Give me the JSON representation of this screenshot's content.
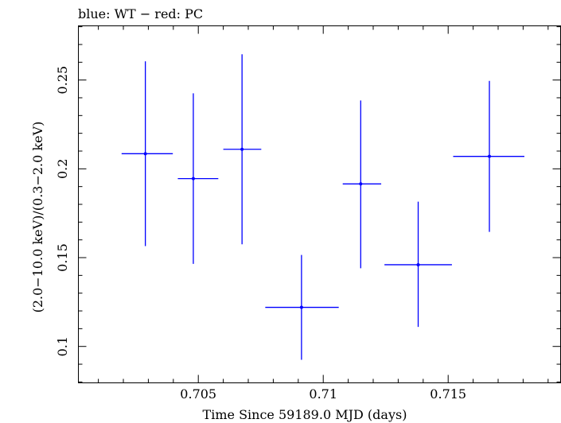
{
  "chart_data": {
    "type": "scatter",
    "title": "blue: WT − red: PC",
    "xlabel": "Time Since 59189.0 MJD (days)",
    "ylabel": "(2.0−10.0 keV)/(0.3−2.0 keV)",
    "xlim": [
      0.7002,
      0.7195
    ],
    "ylim": [
      0.0795,
      0.2805
    ],
    "x_ticks": [
      {
        "value": 0.705,
        "label": "0.705"
      },
      {
        "value": 0.71,
        "label": "0.71"
      },
      {
        "value": 0.715,
        "label": "0.715"
      }
    ],
    "y_ticks": [
      {
        "value": 0.1,
        "label": "0.1"
      },
      {
        "value": 0.15,
        "label": "0.15"
      },
      {
        "value": 0.2,
        "label": "0.2"
      },
      {
        "value": 0.25,
        "label": "0.25"
      }
    ],
    "grid": false,
    "series": [
      {
        "color": "#0000ff",
        "points": [
          {
            "x": 0.70288,
            "xlo": 0.70193,
            "xhi": 0.70398,
            "y": 0.2085,
            "ylo": 0.1565,
            "yhi": 0.2605
          },
          {
            "x": 0.7048,
            "xlo": 0.70418,
            "xhi": 0.7058,
            "y": 0.1945,
            "ylo": 0.1465,
            "yhi": 0.2425
          },
          {
            "x": 0.70675,
            "xlo": 0.706,
            "xhi": 0.70752,
            "y": 0.211,
            "ylo": 0.1575,
            "yhi": 0.2645
          },
          {
            "x": 0.70913,
            "xlo": 0.70768,
            "xhi": 0.71062,
            "y": 0.122,
            "ylo": 0.0925,
            "yhi": 0.1515
          },
          {
            "x": 0.7115,
            "xlo": 0.71078,
            "xhi": 0.71232,
            "y": 0.1915,
            "ylo": 0.144,
            "yhi": 0.2385
          },
          {
            "x": 0.7138,
            "xlo": 0.71245,
            "xhi": 0.71515,
            "y": 0.146,
            "ylo": 0.111,
            "yhi": 0.1815
          },
          {
            "x": 0.71665,
            "xlo": 0.7152,
            "xhi": 0.71805,
            "y": 0.207,
            "ylo": 0.1645,
            "yhi": 0.2495
          }
        ]
      }
    ]
  }
}
